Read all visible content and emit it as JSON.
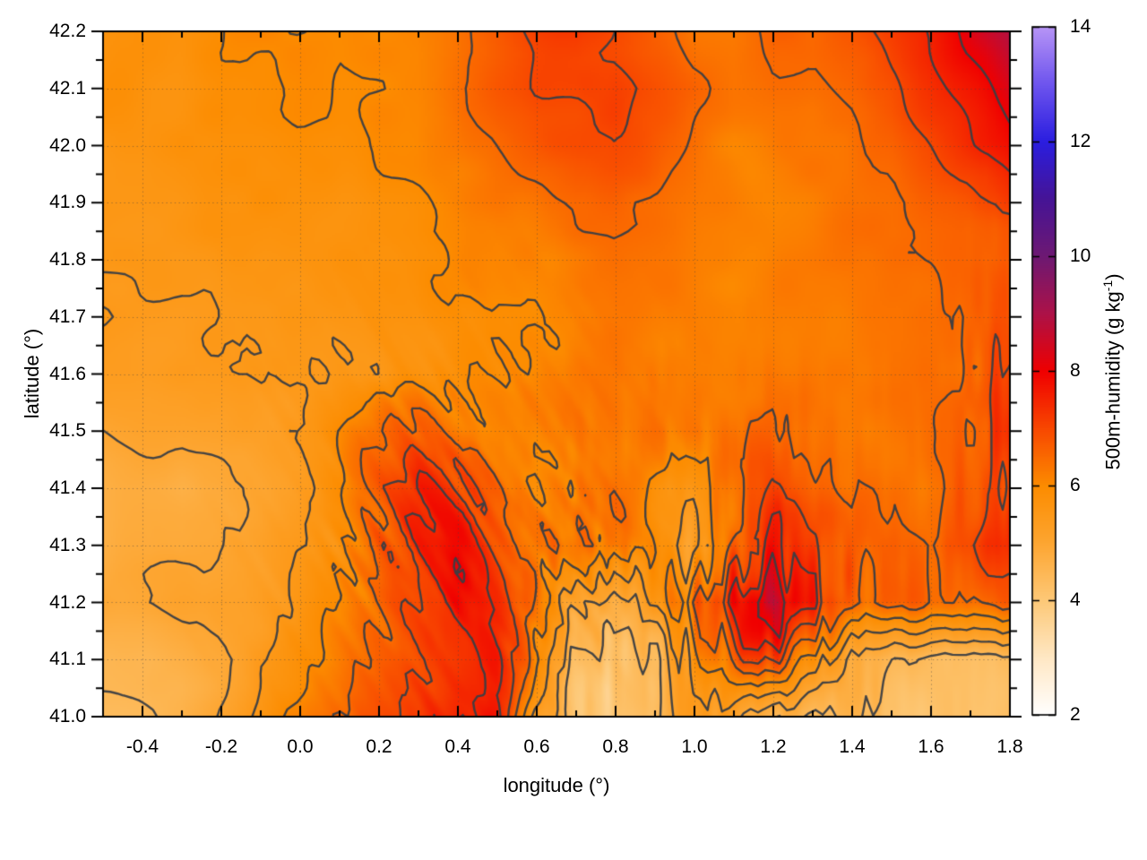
{
  "figure": {
    "background": "#ffffff"
  },
  "x_axis": {
    "label": "longitude (°)",
    "min": -0.5,
    "max": 1.8,
    "major_ticks": [
      -0.4,
      -0.2,
      0.0,
      0.2,
      0.4,
      0.6,
      0.8,
      1.0,
      1.2,
      1.4,
      1.6,
      1.8
    ],
    "tick_labels": [
      "-0.4",
      "-0.2",
      "0.0",
      "0.2",
      "0.4",
      "0.6",
      "0.8",
      "1.0",
      "1.2",
      "1.4",
      "1.6",
      "1.8"
    ],
    "minor_step": 0.1
  },
  "y_axis": {
    "label": "latitude (°)",
    "min": 41.0,
    "max": 42.2,
    "major_ticks": [
      41.0,
      41.1,
      41.2,
      41.3,
      41.4,
      41.5,
      41.6,
      41.7,
      41.8,
      41.9,
      42.0,
      42.1,
      42.2
    ],
    "tick_labels": [
      "41.0",
      "41.1",
      "41.2",
      "41.3",
      "41.4",
      "41.5",
      "41.6",
      "41.7",
      "41.8",
      "41.9",
      "42.0",
      "42.1",
      "42.2"
    ],
    "minor_step": 0.05
  },
  "colorbar": {
    "label_main": "500m-humidity (g kg",
    "label_sup": "-1",
    "label_close": ")",
    "min": 2,
    "max": 14,
    "ticks": [
      2,
      4,
      6,
      8,
      10,
      12,
      14
    ],
    "tick_labels": [
      "2",
      "4",
      "6",
      "8",
      "10",
      "12",
      "14"
    ]
  },
  "chart_data": {
    "type": "heatmap",
    "title": "",
    "xlabel": "longitude (°)",
    "ylabel": "latitude (°)",
    "value_label": "500m-humidity (g kg-1)",
    "x_range": [
      -0.5,
      1.8
    ],
    "y_range": [
      41.0,
      42.2
    ],
    "value_range": [
      2,
      14
    ],
    "grid": {
      "lon_start": -0.5,
      "lon_step": 0.1,
      "lat_start": 42.2,
      "lat_step": -0.1
    },
    "values": [
      [
        5.9,
        5.9,
        5.8,
        5.9,
        6.0,
        6.0,
        5.9,
        6.0,
        6.1,
        6.3,
        6.7,
        7.1,
        7.3,
        7.0,
        6.7,
        6.4,
        6.4,
        6.6,
        6.5,
        6.8,
        7.2,
        7.6,
        8.2,
        8.8
      ],
      [
        5.8,
        5.8,
        5.8,
        5.9,
        5.9,
        6.0,
        5.9,
        6.0,
        6.1,
        6.4,
        6.7,
        7.0,
        6.9,
        7.1,
        6.8,
        6.5,
        6.3,
        6.4,
        6.4,
        6.6,
        6.9,
        7.3,
        7.8,
        8.3
      ],
      [
        5.7,
        5.7,
        5.8,
        5.8,
        5.8,
        5.9,
        5.9,
        6.0,
        6.0,
        6.2,
        6.5,
        6.7,
        6.9,
        7.0,
        6.7,
        6.4,
        6.2,
        6.2,
        6.3,
        6.4,
        6.6,
        7.0,
        7.5,
        7.9
      ],
      [
        5.6,
        5.6,
        5.7,
        5.7,
        5.8,
        5.8,
        5.8,
        5.9,
        6.0,
        6.1,
        6.3,
        6.4,
        6.6,
        6.6,
        6.5,
        6.3,
        6.2,
        6.1,
        6.2,
        6.3,
        6.4,
        6.6,
        6.9,
        7.2
      ],
      [
        5.6,
        5.6,
        5.6,
        5.7,
        5.7,
        5.7,
        5.8,
        5.8,
        5.9,
        6.0,
        6.1,
        6.2,
        6.3,
        6.4,
        6.3,
        6.2,
        6.1,
        6.1,
        6.2,
        6.3,
        6.4,
        6.5,
        6.6,
        6.6
      ],
      [
        5.5,
        5.5,
        5.5,
        5.6,
        5.6,
        5.6,
        5.7,
        5.8,
        5.8,
        5.9,
        6.0,
        6.1,
        6.2,
        6.3,
        6.2,
        6.2,
        6.1,
        6.2,
        6.2,
        6.3,
        6.4,
        6.4,
        6.5,
        6.7
      ],
      [
        5.3,
        5.3,
        5.4,
        5.4,
        5.5,
        5.5,
        5.6,
        5.7,
        5.8,
        5.9,
        6.0,
        6.1,
        6.2,
        6.2,
        6.2,
        6.2,
        6.2,
        6.3,
        6.3,
        6.3,
        6.4,
        6.4,
        6.6,
        7.0
      ],
      [
        5.0,
        5.1,
        5.1,
        5.2,
        5.3,
        5.5,
        5.9,
        6.5,
        6.5,
        6.2,
        6.1,
        6.1,
        6.2,
        6.2,
        6.3,
        6.3,
        6.4,
        6.5,
        6.4,
        6.3,
        6.3,
        6.4,
        6.7,
        7.2
      ],
      [
        4.8,
        4.8,
        4.7,
        4.8,
        5.0,
        5.3,
        5.8,
        6.6,
        7.3,
        7.0,
        6.4,
        6.2,
        6.2,
        6.3,
        5.8,
        5.6,
        6.6,
        7.0,
        6.8,
        6.4,
        6.3,
        6.4,
        6.8,
        7.3
      ],
      [
        4.8,
        4.9,
        4.9,
        5.0,
        5.1,
        5.4,
        5.8,
        6.6,
        7.4,
        7.6,
        6.8,
        6.4,
        6.4,
        6.2,
        5.6,
        5.4,
        6.8,
        7.6,
        7.0,
        6.6,
        6.5,
        6.6,
        7.1,
        7.6
      ],
      [
        5.0,
        5.0,
        5.1,
        5.2,
        5.3,
        5.6,
        6.0,
        6.6,
        7.3,
        7.9,
        7.4,
        6.4,
        5.0,
        4.8,
        5.4,
        6.6,
        7.8,
        8.6,
        7.4,
        6.8,
        6.6,
        6.4,
        6.5,
        6.8
      ],
      [
        4.6,
        4.6,
        4.7,
        4.9,
        5.3,
        5.7,
        6.1,
        6.6,
        7.1,
        7.6,
        7.8,
        6.2,
        4.6,
        4.3,
        4.8,
        5.8,
        6.6,
        7.0,
        5.8,
        5.0,
        4.6,
        4.4,
        4.3,
        4.4
      ],
      [
        4.5,
        4.5,
        4.6,
        5.0,
        5.6,
        6.0,
        6.5,
        6.9,
        7.1,
        7.6,
        8.0,
        5.2,
        4.2,
        3.9,
        4.5,
        5.5,
        5.4,
        4.9,
        4.6,
        4.4,
        4.3,
        4.2,
        4.2,
        4.3
      ]
    ],
    "contour_levels": [
      4.5,
      5.0,
      5.5,
      6.0,
      6.5,
      7.0,
      7.5,
      8.0
    ],
    "contour_color": "#3b3e43",
    "grid_line_color": "rgba(70,70,70,0.5)",
    "palette": [
      [
        2,
        "#ffffff"
      ],
      [
        3,
        "#ffe8c5"
      ],
      [
        4,
        "#fdc978"
      ],
      [
        5,
        "#fda632"
      ],
      [
        6,
        "#fc8c00"
      ],
      [
        7,
        "#f84800"
      ],
      [
        8,
        "#f00000"
      ],
      [
        9,
        "#ad1248"
      ],
      [
        10,
        "#6e1973"
      ],
      [
        11,
        "#461496"
      ],
      [
        12,
        "#2b1ee0"
      ],
      [
        13,
        "#6e55ee"
      ],
      [
        14,
        "#b794f6"
      ]
    ],
    "noise": {
      "amp1": 0.11,
      "scale1": 70,
      "amp2": 0.07,
      "scale2": 32
    },
    "texture_zones": [
      {
        "name": "central-diagonal-streaks",
        "cx": 0.42,
        "cy": 41.27,
        "rx": 0.4,
        "ry": 0.33,
        "dir": [
          0.86,
          -0.51
        ],
        "fa": 0.085,
        "fl": 0.011,
        "amp": 0.55
      },
      {
        "name": "south-vertical-streaks",
        "cx": 1.07,
        "cy": 41.2,
        "rx": 0.45,
        "ry": 0.27,
        "dir": [
          1,
          0
        ],
        "fa": 0.1,
        "fl": 0.013,
        "amp": 0.7
      },
      {
        "name": "east-edge-streaks",
        "cx": 1.78,
        "cy": 41.45,
        "rx": 0.14,
        "ry": 0.3,
        "dir": [
          1,
          0
        ],
        "fa": 0.1,
        "fl": 0.013,
        "amp": 0.5
      }
    ]
  }
}
